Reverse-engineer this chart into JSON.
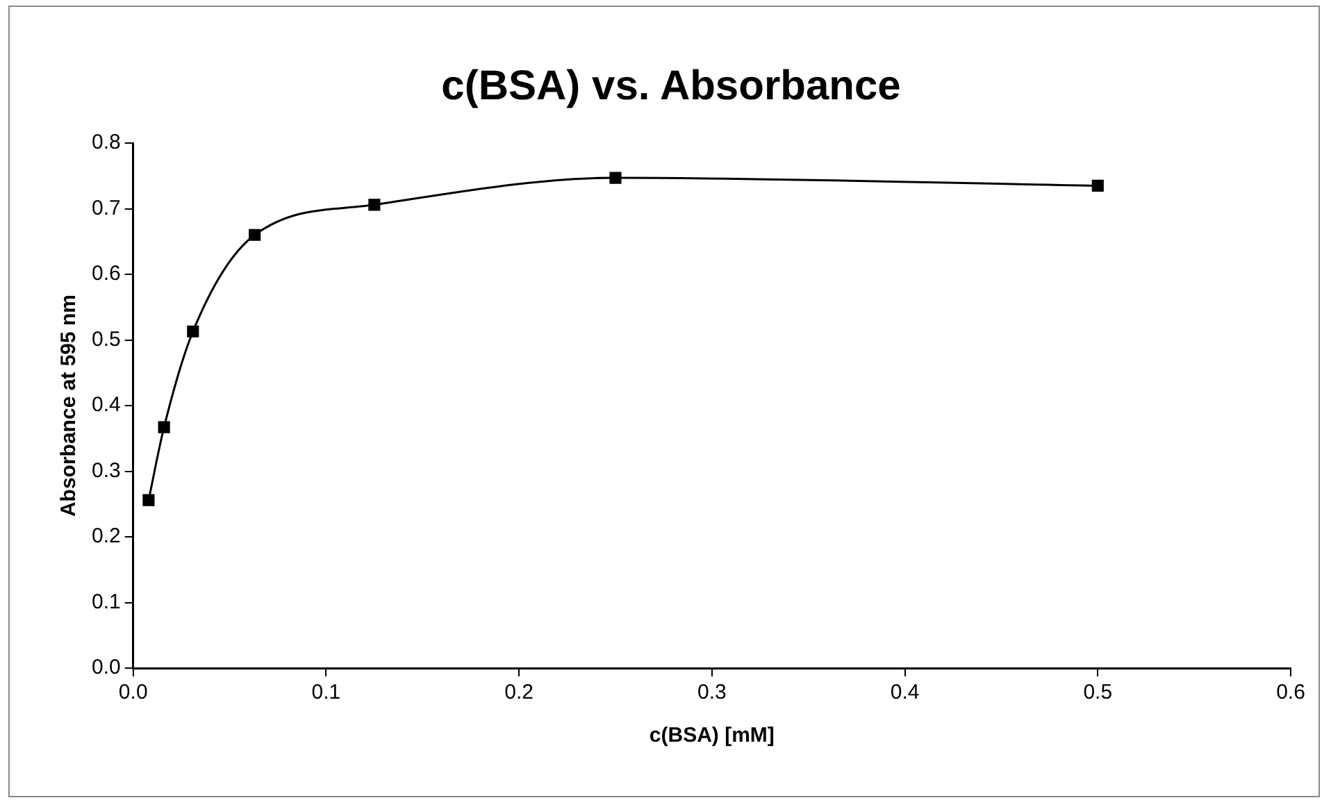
{
  "chart_data": {
    "type": "line",
    "title": "c(BSA) vs. Absorbance",
    "xlabel": "c(BSA) [mM]",
    "ylabel": "Absorbance at 595 nm",
    "x": [
      0.008,
      0.016,
      0.031,
      0.063,
      0.125,
      0.25,
      0.5
    ],
    "series": [
      {
        "color": "#000000",
        "values": [
          0.256,
          0.367,
          0.513,
          0.66,
          0.706,
          0.747,
          0.735
        ]
      }
    ],
    "xlim": [
      0,
      0.6
    ],
    "xticks": [
      {
        "value": 0,
        "label": "0.0"
      },
      0.1,
      0.2,
      0.3,
      0.4,
      0.5,
      0.6
    ],
    "ylim": [
      0,
      0.8
    ],
    "yticks": [
      {
        "value": 0,
        "label": "0.0"
      },
      0.1,
      0.2,
      0.3,
      0.4,
      0.5,
      0.6,
      0.7,
      0.8
    ],
    "grid": false,
    "legend": false,
    "marker": "square",
    "line_style": "solid"
  }
}
